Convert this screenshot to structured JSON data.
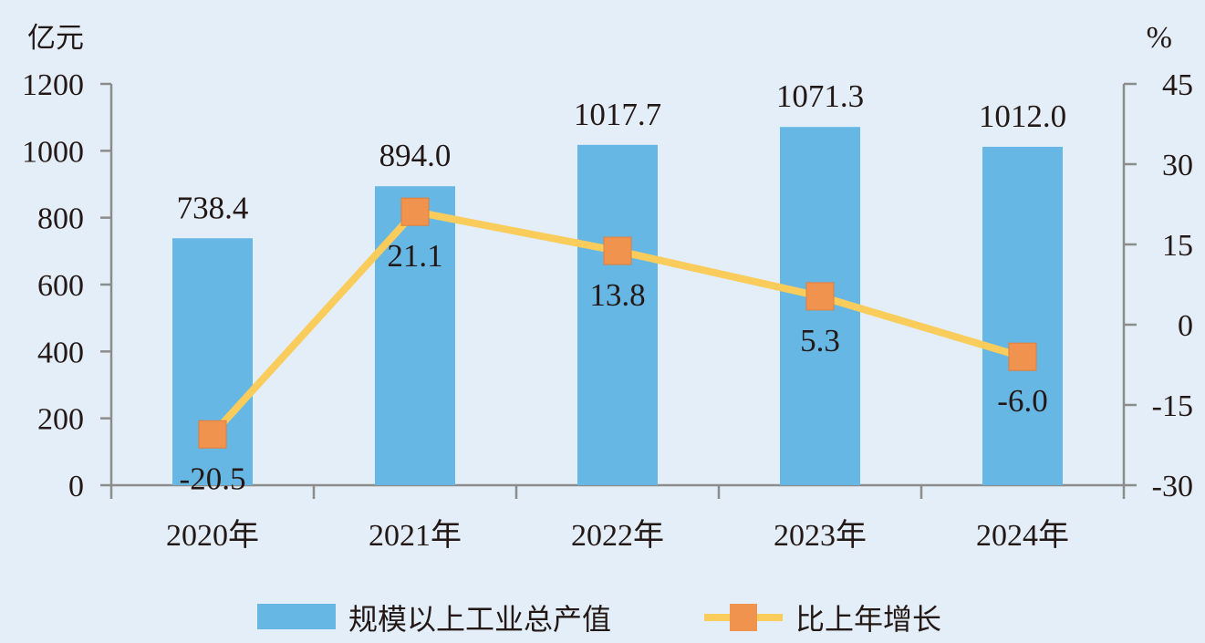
{
  "chart_data": {
    "type": "bar",
    "categories": [
      "2020年",
      "2021年",
      "2022年",
      "2023年",
      "2024年"
    ],
    "series": [
      {
        "name": "规模以上工业总产值",
        "type": "bar",
        "axis": "left",
        "values": [
          738.4,
          894.0,
          1017.7,
          1071.3,
          1012.0
        ],
        "labels": [
          "738.4",
          "894.0",
          "1017.7",
          "1071.3",
          "1012.0"
        ],
        "color": "#67b7e5"
      },
      {
        "name": "比上年增长",
        "type": "line",
        "axis": "right",
        "values": [
          -20.5,
          21.1,
          13.8,
          5.3,
          -6.0
        ],
        "labels": [
          "-20.5",
          "21.1",
          "13.8",
          "5.3",
          "-6.0"
        ],
        "line_color": "#f9cc5b",
        "marker_color": "#f0934f"
      }
    ],
    "y_left": {
      "unit": "亿元",
      "ylim": [
        0,
        1200
      ],
      "ticks": [
        "0",
        "200",
        "400",
        "600",
        "800",
        "1000",
        "1200"
      ],
      "tick_values": [
        0,
        200,
        400,
        600,
        800,
        1000,
        1200
      ]
    },
    "y_right": {
      "unit": "%",
      "ylim": [
        -30,
        45
      ],
      "ticks": [
        "-30",
        "-15",
        "0",
        "15",
        "30",
        "45"
      ],
      "tick_values": [
        -30,
        -15,
        0,
        15,
        30,
        45
      ]
    },
    "grid": false,
    "legend_position": "bottom-center",
    "background_color": "#e3eef8",
    "axis_color": "#8c8c8c"
  }
}
